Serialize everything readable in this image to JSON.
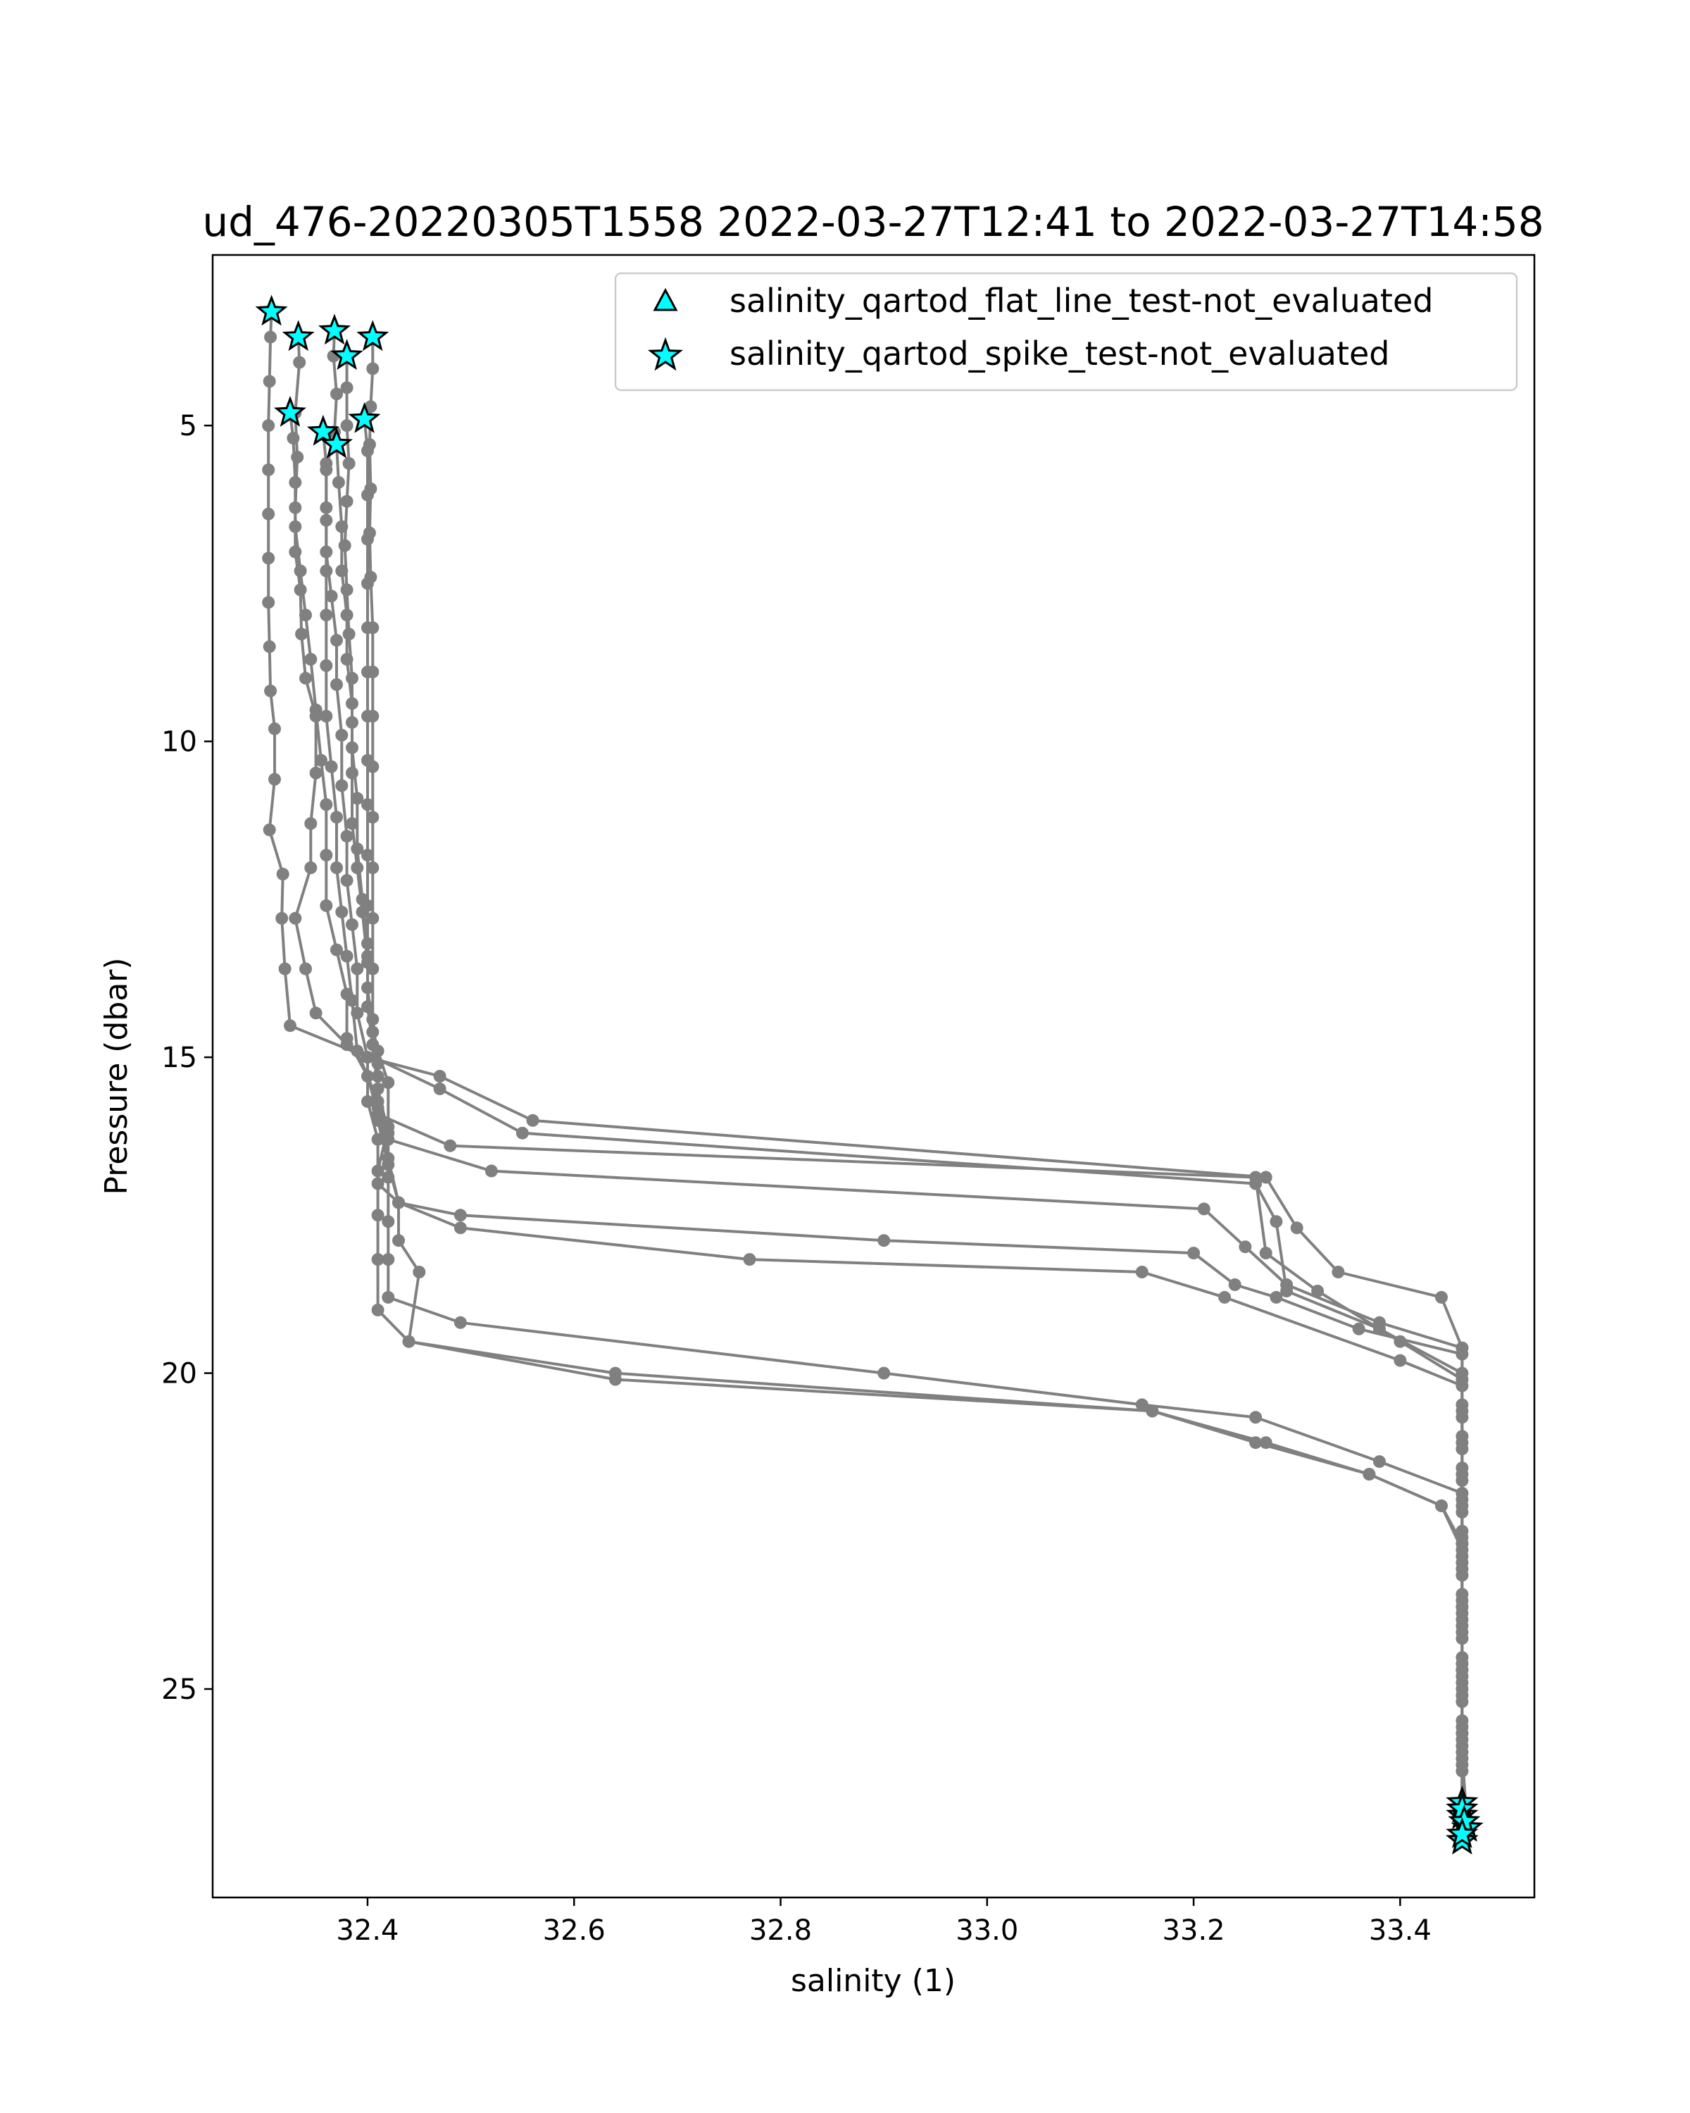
{
  "chart_data": {
    "type": "line",
    "title": "ud_476-20220305T1558 2022-03-27T12:41 to 2022-03-27T14:58",
    "xlabel": "salinity (1)",
    "ylabel": "Pressure (dbar)",
    "xlim": [
      32.25,
      33.53
    ],
    "ylim": [
      28.3,
      2.3
    ],
    "y_inverted": true,
    "grid": false,
    "legend_position": "top-right",
    "line_color": "#808080",
    "marker_color": "#00ffff",
    "xticks": [
      "32.4",
      "32.6",
      "32.8",
      "33.0",
      "33.2",
      "33.4"
    ],
    "xtick_values": [
      32.4,
      32.6,
      32.8,
      33.0,
      33.2,
      33.4
    ],
    "yticks": [
      "5",
      "10",
      "15",
      "20",
      "25"
    ],
    "ytick_values": [
      5,
      10,
      15,
      20,
      25
    ],
    "legend": [
      {
        "label": "salinity_qartod_flat_line_test-not_evaluated",
        "marker": "triangle"
      },
      {
        "label": "salinity_qartod_spike_test-not_evaluated",
        "marker": "star"
      }
    ],
    "series": [
      {
        "points": [
          [
            32.307,
            3.2
          ],
          [
            32.306,
            3.6
          ],
          [
            32.305,
            4.3
          ],
          [
            32.304,
            5.0
          ],
          [
            32.304,
            5.7
          ],
          [
            32.304,
            6.4
          ],
          [
            32.304,
            7.1
          ],
          [
            32.304,
            7.8
          ],
          [
            32.305,
            8.5
          ],
          [
            32.306,
            9.2
          ],
          [
            32.31,
            9.8
          ],
          [
            32.31,
            10.6
          ],
          [
            32.305,
            11.4
          ],
          [
            32.318,
            12.1
          ],
          [
            32.317,
            12.8
          ],
          [
            32.32,
            13.6
          ],
          [
            32.325,
            14.5
          ],
          [
            32.4,
            15.0
          ],
          [
            32.47,
            15.3
          ],
          [
            32.56,
            16.0
          ],
          [
            33.27,
            16.9
          ],
          [
            33.3,
            17.7
          ],
          [
            33.34,
            18.4
          ],
          [
            33.44,
            18.8
          ],
          [
            33.46,
            19.6
          ],
          [
            33.46,
            20.5
          ],
          [
            33.46,
            21.5
          ],
          [
            33.46,
            22.5
          ],
          [
            33.46,
            23.5
          ],
          [
            33.46,
            24.5
          ],
          [
            33.46,
            25.5
          ],
          [
            33.46,
            26.3
          ],
          [
            33.46,
            27.0
          ]
        ]
      },
      {
        "points": [
          [
            32.333,
            3.6
          ],
          [
            32.334,
            4.0
          ],
          [
            32.33,
            4.8
          ],
          [
            32.332,
            5.5
          ],
          [
            32.33,
            6.3
          ],
          [
            32.33,
            7.0
          ],
          [
            32.335,
            7.6
          ],
          [
            32.336,
            8.3
          ],
          [
            32.34,
            9.0
          ],
          [
            32.35,
            9.6
          ],
          [
            32.35,
            10.5
          ],
          [
            32.345,
            11.3
          ],
          [
            32.345,
            12.0
          ],
          [
            32.33,
            12.8
          ],
          [
            32.34,
            13.6
          ],
          [
            32.35,
            14.3
          ],
          [
            32.38,
            14.8
          ],
          [
            32.47,
            15.5
          ],
          [
            32.55,
            16.2
          ],
          [
            33.26,
            17.0
          ],
          [
            33.28,
            17.6
          ],
          [
            33.29,
            18.7
          ],
          [
            33.38,
            19.3
          ],
          [
            33.46,
            20.0
          ],
          [
            33.46,
            21.0
          ],
          [
            33.46,
            22.0
          ],
          [
            33.46,
            23.0
          ],
          [
            33.46,
            24.0
          ],
          [
            33.46,
            25.0
          ],
          [
            33.46,
            26.0
          ],
          [
            33.465,
            27.2
          ]
        ]
      },
      {
        "points": [
          [
            32.325,
            4.8
          ],
          [
            32.328,
            5.2
          ],
          [
            32.33,
            5.9
          ],
          [
            32.33,
            6.6
          ],
          [
            32.335,
            7.3
          ],
          [
            32.34,
            8.0
          ],
          [
            32.345,
            8.7
          ],
          [
            32.35,
            9.5
          ],
          [
            32.355,
            10.3
          ],
          [
            32.36,
            11.0
          ],
          [
            32.36,
            11.8
          ],
          [
            32.36,
            12.6
          ],
          [
            32.37,
            13.3
          ],
          [
            32.38,
            14.0
          ],
          [
            32.38,
            14.7
          ],
          [
            32.4,
            15.3
          ],
          [
            32.41,
            15.9
          ],
          [
            32.48,
            16.4
          ],
          [
            33.26,
            16.9
          ],
          [
            33.27,
            18.1
          ],
          [
            33.32,
            18.7
          ],
          [
            33.4,
            19.5
          ],
          [
            33.46,
            20.1
          ],
          [
            33.46,
            21.1
          ],
          [
            33.46,
            22.1
          ],
          [
            33.46,
            23.1
          ],
          [
            33.46,
            24.1
          ],
          [
            33.46,
            25.1
          ],
          [
            33.46,
            26.1
          ],
          [
            33.46,
            27.4
          ]
        ]
      },
      {
        "points": [
          [
            32.368,
            3.5
          ],
          [
            32.367,
            3.9
          ],
          [
            32.37,
            4.5
          ],
          [
            32.368,
            5.1
          ],
          [
            32.36,
            5.7
          ],
          [
            32.36,
            6.5
          ],
          [
            32.36,
            7.3
          ],
          [
            32.36,
            8.0
          ],
          [
            32.36,
            8.8
          ],
          [
            32.36,
            9.6
          ],
          [
            32.365,
            10.4
          ],
          [
            32.37,
            11.2
          ],
          [
            32.37,
            12.0
          ],
          [
            32.375,
            12.7
          ],
          [
            32.38,
            13.4
          ],
          [
            32.385,
            14.1
          ],
          [
            32.39,
            14.9
          ],
          [
            32.41,
            15.7
          ],
          [
            32.42,
            16.3
          ],
          [
            32.52,
            16.8
          ],
          [
            33.21,
            17.4
          ],
          [
            33.25,
            18.0
          ],
          [
            33.29,
            18.6
          ],
          [
            33.38,
            19.2
          ],
          [
            33.46,
            19.6
          ],
          [
            33.46,
            20.6
          ],
          [
            33.46,
            21.6
          ],
          [
            33.46,
            22.6
          ],
          [
            33.46,
            23.6
          ],
          [
            33.46,
            24.6
          ],
          [
            33.46,
            25.6
          ],
          [
            33.46,
            26.8
          ]
        ]
      },
      {
        "points": [
          [
            32.357,
            5.1
          ],
          [
            32.36,
            5.6
          ],
          [
            32.36,
            6.3
          ],
          [
            32.36,
            7.0
          ],
          [
            32.365,
            7.7
          ],
          [
            32.37,
            8.4
          ],
          [
            32.37,
            9.1
          ],
          [
            32.375,
            9.9
          ],
          [
            32.375,
            10.7
          ],
          [
            32.38,
            11.5
          ],
          [
            32.38,
            12.2
          ],
          [
            32.385,
            12.9
          ],
          [
            32.39,
            13.6
          ],
          [
            32.39,
            14.3
          ],
          [
            32.4,
            15.0
          ],
          [
            32.4,
            15.7
          ],
          [
            32.41,
            16.3
          ],
          [
            32.41,
            17.0
          ],
          [
            32.43,
            17.3
          ],
          [
            32.49,
            17.5
          ],
          [
            32.9,
            17.9
          ],
          [
            33.2,
            18.1
          ],
          [
            33.24,
            18.6
          ],
          [
            33.28,
            18.8
          ],
          [
            33.36,
            19.3
          ],
          [
            33.46,
            19.7
          ],
          [
            33.46,
            20.7
          ],
          [
            33.46,
            21.7
          ],
          [
            33.46,
            22.7
          ],
          [
            33.46,
            23.7
          ],
          [
            33.46,
            24.7
          ],
          [
            33.46,
            25.7
          ],
          [
            33.46,
            26.9
          ]
        ]
      },
      {
        "points": [
          [
            32.37,
            5.3
          ],
          [
            32.372,
            5.9
          ],
          [
            32.375,
            6.6
          ],
          [
            32.375,
            7.3
          ],
          [
            32.38,
            8.0
          ],
          [
            32.38,
            8.7
          ],
          [
            32.385,
            9.4
          ],
          [
            32.385,
            10.1
          ],
          [
            32.39,
            10.9
          ],
          [
            32.39,
            11.7
          ],
          [
            32.395,
            12.5
          ],
          [
            32.4,
            13.2
          ],
          [
            32.4,
            13.9
          ],
          [
            32.405,
            14.6
          ],
          [
            32.41,
            15.3
          ],
          [
            32.41,
            16.0
          ],
          [
            32.42,
            16.7
          ],
          [
            32.43,
            17.3
          ],
          [
            32.49,
            17.7
          ],
          [
            32.77,
            18.2
          ],
          [
            33.15,
            18.4
          ],
          [
            33.23,
            18.8
          ],
          [
            33.4,
            19.8
          ],
          [
            33.46,
            20.2
          ],
          [
            33.46,
            21.2
          ],
          [
            33.46,
            22.2
          ],
          [
            33.46,
            23.2
          ],
          [
            33.46,
            24.2
          ],
          [
            33.46,
            25.2
          ],
          [
            33.46,
            26.2
          ],
          [
            33.462,
            27.1
          ]
        ]
      },
      {
        "points": [
          [
            32.38,
            3.9
          ],
          [
            32.38,
            4.4
          ],
          [
            32.38,
            5.0
          ],
          [
            32.382,
            5.6
          ],
          [
            32.38,
            6.2
          ],
          [
            32.378,
            6.9
          ],
          [
            32.38,
            7.6
          ],
          [
            32.382,
            8.3
          ],
          [
            32.385,
            9.0
          ],
          [
            32.385,
            9.7
          ],
          [
            32.385,
            10.5
          ],
          [
            32.385,
            11.3
          ],
          [
            32.39,
            12.0
          ],
          [
            32.395,
            12.7
          ],
          [
            32.4,
            13.5
          ],
          [
            32.4,
            14.2
          ],
          [
            32.405,
            14.8
          ],
          [
            32.41,
            15.5
          ],
          [
            32.42,
            16.2
          ],
          [
            32.42,
            16.9
          ],
          [
            32.42,
            17.6
          ],
          [
            32.42,
            18.2
          ],
          [
            32.42,
            18.8
          ],
          [
            32.49,
            19.2
          ],
          [
            32.9,
            20.0
          ],
          [
            33.15,
            20.5
          ],
          [
            33.26,
            20.7
          ],
          [
            33.38,
            21.4
          ],
          [
            33.46,
            21.9
          ],
          [
            33.46,
            22.9
          ],
          [
            33.46,
            23.9
          ],
          [
            33.46,
            24.9
          ],
          [
            33.46,
            25.9
          ],
          [
            33.46,
            27.0
          ]
        ]
      },
      {
        "points": [
          [
            32.405,
            3.6
          ],
          [
            32.405,
            4.1
          ],
          [
            32.403,
            4.7
          ],
          [
            32.402,
            5.3
          ],
          [
            32.403,
            6.0
          ],
          [
            32.402,
            6.7
          ],
          [
            32.403,
            7.4
          ],
          [
            32.405,
            8.2
          ],
          [
            32.405,
            8.9
          ],
          [
            32.405,
            9.6
          ],
          [
            32.405,
            10.4
          ],
          [
            32.405,
            11.2
          ],
          [
            32.405,
            12.0
          ],
          [
            32.405,
            12.8
          ],
          [
            32.405,
            13.6
          ],
          [
            32.405,
            14.4
          ],
          [
            32.41,
            15.1
          ],
          [
            32.41,
            15.8
          ],
          [
            32.42,
            16.6
          ],
          [
            32.43,
            17.3
          ],
          [
            32.43,
            17.9
          ],
          [
            32.45,
            18.4
          ],
          [
            32.44,
            19.5
          ],
          [
            32.64,
            20.1
          ],
          [
            33.16,
            20.6
          ],
          [
            33.27,
            21.1
          ],
          [
            33.37,
            21.6
          ],
          [
            33.44,
            22.1
          ],
          [
            33.46,
            22.8
          ],
          [
            33.46,
            23.8
          ],
          [
            33.46,
            24.8
          ],
          [
            33.46,
            25.8
          ],
          [
            33.46,
            27.4
          ]
        ]
      },
      {
        "points": [
          [
            32.397,
            4.9
          ],
          [
            32.4,
            5.4
          ],
          [
            32.4,
            6.1
          ],
          [
            32.4,
            6.8
          ],
          [
            32.4,
            7.5
          ],
          [
            32.4,
            8.2
          ],
          [
            32.4,
            8.9
          ],
          [
            32.4,
            9.6
          ],
          [
            32.4,
            10.3
          ],
          [
            32.4,
            11.0
          ],
          [
            32.4,
            11.8
          ],
          [
            32.4,
            12.6
          ],
          [
            32.4,
            13.4
          ],
          [
            32.4,
            14.2
          ],
          [
            32.41,
            14.9
          ],
          [
            32.42,
            15.4
          ],
          [
            32.42,
            16.1
          ],
          [
            32.41,
            16.8
          ],
          [
            32.41,
            17.5
          ],
          [
            32.41,
            18.2
          ],
          [
            32.41,
            19.0
          ],
          [
            32.44,
            19.5
          ],
          [
            32.64,
            20.0
          ],
          [
            33.16,
            20.6
          ],
          [
            33.26,
            21.1
          ],
          [
            33.37,
            21.6
          ],
          [
            33.44,
            22.1
          ],
          [
            33.46,
            22.7
          ],
          [
            33.46,
            23.7
          ],
          [
            33.46,
            24.7
          ],
          [
            33.46,
            25.7
          ],
          [
            33.46,
            27.3
          ]
        ]
      }
    ],
    "spike_markers": [
      [
        32.307,
        3.2
      ],
      [
        32.333,
        3.6
      ],
      [
        32.368,
        3.5
      ],
      [
        32.405,
        3.6
      ],
      [
        32.38,
        3.9
      ],
      [
        32.325,
        4.8
      ],
      [
        32.397,
        4.9
      ],
      [
        32.357,
        5.1
      ],
      [
        32.37,
        5.3
      ],
      [
        33.46,
        27.0
      ],
      [
        33.465,
        27.2
      ],
      [
        33.46,
        27.4
      ],
      [
        33.46,
        26.8
      ],
      [
        33.46,
        26.9
      ],
      [
        33.462,
        27.1
      ],
      [
        33.46,
        27.4
      ],
      [
        33.46,
        27.3
      ]
    ]
  }
}
